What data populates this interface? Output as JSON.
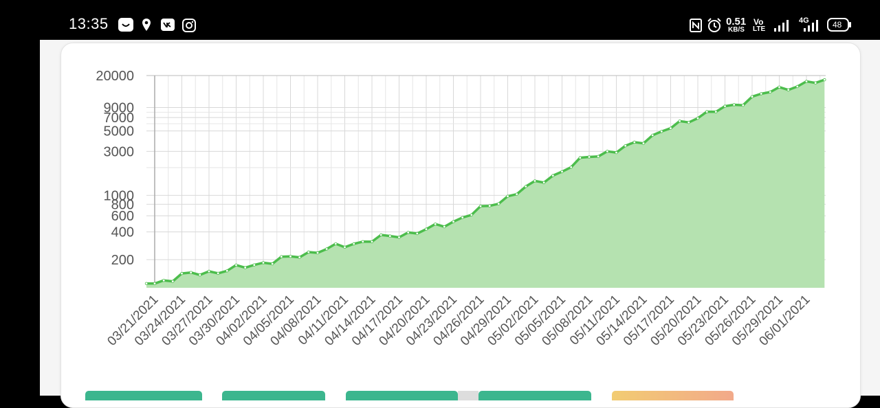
{
  "status_bar": {
    "time": "13:35",
    "net_speed_value": "0.51",
    "net_speed_unit": "KB/S",
    "volte_top": "Vo",
    "volte_bottom": "LTE",
    "network_type": "4G",
    "battery": "48",
    "left_icons": [
      "smile-app-icon",
      "location-pin-icon",
      "vk-icon",
      "instagram-icon"
    ],
    "right_icons": [
      "nfc-icon",
      "alarm-clock-icon",
      "signal-bars-icon",
      "signal-bars-4g-icon",
      "battery-icon"
    ]
  },
  "buttons": [
    {
      "name": "button-1",
      "color": "#3cb68e"
    },
    {
      "name": "button-2",
      "color": "#3cb68e"
    },
    {
      "name": "button-3",
      "color": "#3cb68e"
    },
    {
      "name": "button-4",
      "color": "#3cb68e"
    },
    {
      "name": "button-5",
      "color": "#f2c66f"
    }
  ],
  "chart_data": {
    "type": "area",
    "title": "",
    "xlabel": "",
    "ylabel": "",
    "y_scale": "log",
    "grid": true,
    "legend": "none",
    "colors": {
      "line": "#4cbd4c",
      "fill": "#b5e2b0",
      "grid": "#d8d8d8"
    },
    "y_ticks": [
      200,
      400,
      600,
      800,
      1000,
      3000,
      5000,
      7000,
      9000,
      20000
    ],
    "y_tick_labels": [
      "200",
      "400",
      "600",
      "800",
      "1000",
      "3000",
      "5000",
      "7000",
      "9000",
      "20000"
    ],
    "x_tick_labels": [
      "03/21/2021",
      "03/24/2021",
      "03/27/2021",
      "03/30/2021",
      "04/02/2021",
      "04/05/2021",
      "04/08/2021",
      "04/11/2021",
      "04/14/2021",
      "04/17/2021",
      "04/20/2021",
      "04/23/2021",
      "04/26/2021",
      "04/29/2021",
      "05/02/2021",
      "05/05/2021",
      "05/08/2021",
      "05/11/2021",
      "05/14/2021",
      "05/17/2021",
      "05/20/2021",
      "05/23/2021",
      "05/26/2021",
      "05/29/2021",
      "06/01/2021"
    ],
    "series": [
      {
        "x": [
          "03/21/2021",
          "03/24/2021",
          "03/27/2021",
          "03/30/2021",
          "04/02/2021",
          "04/05/2021",
          "04/08/2021",
          "04/11/2021",
          "04/14/2021",
          "04/17/2021",
          "04/20/2021",
          "04/23/2021",
          "04/26/2021",
          "04/29/2021",
          "05/02/2021",
          "05/05/2021",
          "05/08/2021",
          "05/11/2021",
          "05/14/2021",
          "05/17/2021",
          "05/20/2021",
          "05/24/2021",
          "05/27/2021",
          "05/30/2021",
          "06/02/2021",
          "06/03/2021"
        ],
        "values": [
          110,
          135,
          145,
          160,
          185,
          210,
          250,
          285,
          330,
          370,
          420,
          520,
          700,
          950,
          1350,
          1800,
          2700,
          3000,
          4000,
          5400,
          7200,
          9500,
          12500,
          15000,
          17000,
          18000
        ]
      }
    ]
  }
}
